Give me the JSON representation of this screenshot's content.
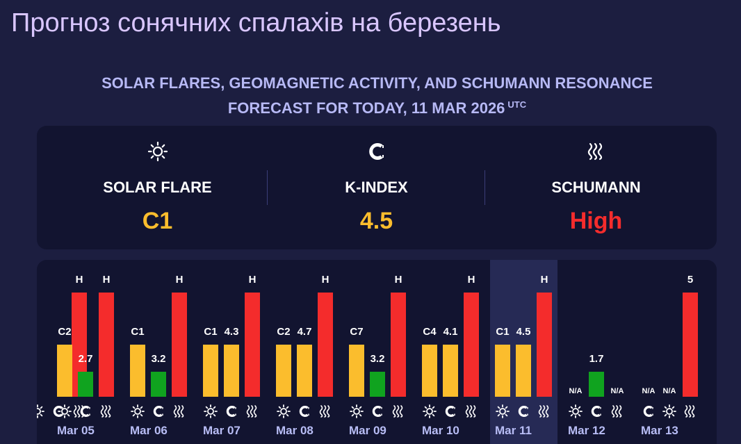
{
  "page": {
    "title": "Прогноз сонячних спалахів на березень"
  },
  "header": {
    "line1": "SOLAR FLARES, GEOMAGNETIC ACTIVITY, AND SCHUMANN RESONANCE",
    "line2": "FORECAST FOR TODAY, 11 MAR 2026",
    "tz": "UTC"
  },
  "summary": {
    "flare": {
      "label": "SOLAR FLARE",
      "value": "C1",
      "icon": "sun-icon",
      "color": "#fbbd2d"
    },
    "kindex": {
      "label": "K-INDEX",
      "value": "4.5",
      "icon": "magnet-icon",
      "color": "#fbbd2d"
    },
    "schumann": {
      "label": "SCHUMANN",
      "value": "High",
      "icon": "waves-icon",
      "color": "#f42c2c"
    }
  },
  "colors": {
    "yellow": "#fbbd2d",
    "green": "#10a31f",
    "red": "#f42c2c",
    "highlight": "#262a55"
  },
  "chart_data": {
    "type": "bar",
    "categories": [
      "Mar 05",
      "Mar 06",
      "Mar 07",
      "Mar 08",
      "Mar 09",
      "Mar 10",
      "Mar 11",
      "Mar 12",
      "Mar 13"
    ],
    "partial_leading_day": {
      "schumann": "H"
    },
    "series": [
      {
        "key": "flare",
        "labels": [
          "C2",
          "C1",
          "C1",
          "C2",
          "C7",
          "C4",
          "C1",
          "N/A",
          "N/A"
        ]
      },
      {
        "key": "kindex",
        "labels": [
          "2.7",
          "3.2",
          "4.3",
          "4.7",
          "3.2",
          "4.1",
          "4.5",
          "1.7",
          "N/A"
        ],
        "values": [
          2.7,
          3.2,
          4.3,
          4.7,
          3.2,
          4.1,
          4.5,
          1.7,
          null
        ]
      },
      {
        "key": "schumann",
        "labels": [
          "H",
          "H",
          "H",
          "H",
          "H",
          "H",
          "H",
          "N/A",
          "5"
        ]
      }
    ],
    "level_fraction": {
      "flare": [
        0.5,
        0.5,
        0.5,
        0.5,
        0.5,
        0.5,
        0.5,
        0,
        0
      ],
      "kindex": [
        0.24,
        0.24,
        0.5,
        0.5,
        0.24,
        0.5,
        0.5,
        0.24,
        0
      ],
      "schumann": [
        1,
        1,
        1,
        1,
        1,
        1,
        1,
        0,
        1
      ]
    },
    "today_index": 6
  }
}
